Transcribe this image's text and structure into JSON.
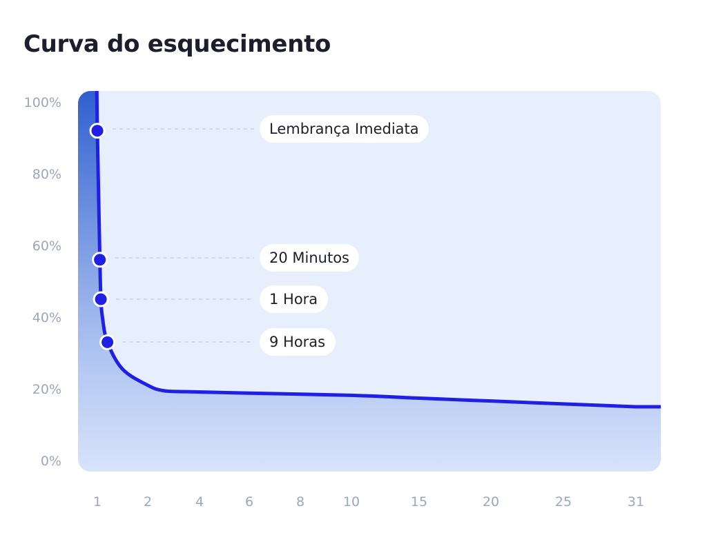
{
  "title": "Curva do esquecimento",
  "chart_data": {
    "type": "area",
    "title": "Curva do esquecimento",
    "xlabel": "",
    "ylabel": "",
    "ylim": [
      0,
      100
    ],
    "yticks": [
      "0%",
      "20%",
      "40%",
      "60%",
      "80%",
      "100%"
    ],
    "xticks": [
      "1",
      "2",
      "4",
      "6",
      "8",
      "10",
      "15",
      "20",
      "25",
      "31"
    ],
    "series": [
      {
        "points": [
          {
            "x": 0.99,
            "y": 103
          },
          {
            "x": 1.0,
            "y": 92
          },
          {
            "x": 1.05,
            "y": 56
          },
          {
            "x": 1.07,
            "y": 45
          },
          {
            "x": 1.1,
            "y": 40
          },
          {
            "x": 1.2,
            "y": 33
          },
          {
            "x": 1.5,
            "y": 25.5
          },
          {
            "x": 2.0,
            "y": 21
          },
          {
            "x": 2.6,
            "y": 19.5
          },
          {
            "x": 3.5,
            "y": 19.2
          },
          {
            "x": 6,
            "y": 18.8
          },
          {
            "x": 10,
            "y": 18.2
          },
          {
            "x": 15,
            "y": 17.4
          },
          {
            "x": 20,
            "y": 16.6
          },
          {
            "x": 25,
            "y": 15.8
          },
          {
            "x": 31,
            "y": 15.0
          }
        ]
      }
    ],
    "annotations": [
      {
        "label": "Lembrança Imediata",
        "x": 1.0,
        "y": 92
      },
      {
        "label": "20 Minutos",
        "x": 1.05,
        "y": 56
      },
      {
        "label": "1 Hora",
        "x": 1.07,
        "y": 45
      },
      {
        "label": "9 Horas",
        "x": 1.2,
        "y": 33
      }
    ],
    "colors": {
      "line": "#1f1fe6",
      "marker": "#1f1fe6",
      "plot_bg": "#e8effc",
      "area_top": "#2f5fd0",
      "area_bottom": "#d6e2fb",
      "grid": "#c5d2e8",
      "tick": "#9aa7bd",
      "pill_bg": "#ffffff",
      "pill_text": "#1c1f2b"
    }
  }
}
